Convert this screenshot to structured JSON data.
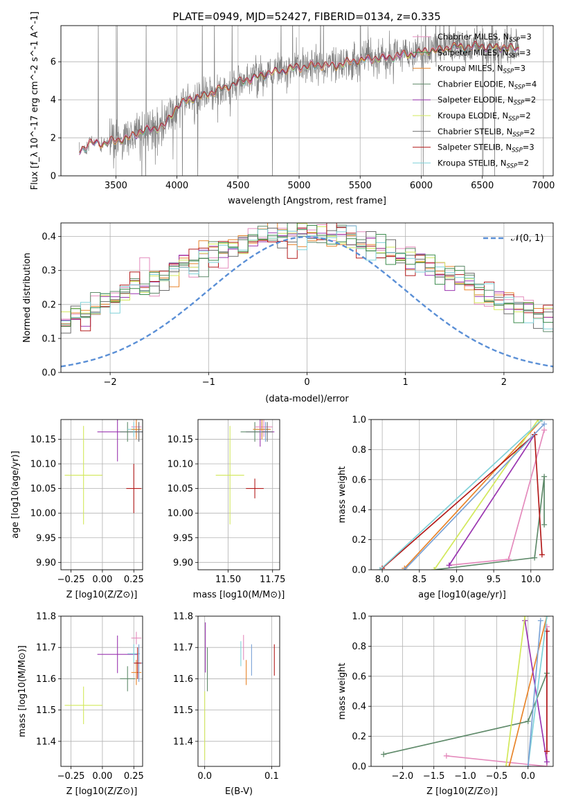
{
  "figure": {
    "title": "PLATE=0949, MJD=52427, FIBERID=0134, z=0.335"
  },
  "colors": {
    "spectrum": "#808080",
    "normal_curve": "#5a8fd6",
    "grid": "#b0b0b0",
    "models": [
      "#e48abc",
      "#3c8c4e",
      "#e8842a",
      "#5f8a6a",
      "#9a35b0",
      "#d2e85a",
      "#6a6a6a",
      "#b31b1b",
      "#7fd1d8",
      "#7aa2d6"
    ]
  },
  "chart_data": [
    {
      "id": "spectrum",
      "type": "line",
      "xlabel": "wavelength [Angstrom, rest frame]",
      "ylabel": "Flux [f_λ 10^-17 erg cm^-2 s^-1 A^-1]",
      "xlim": [
        3050,
        7080
      ],
      "ylim": [
        0,
        7.9
      ],
      "xticks": [
        3500,
        4000,
        4500,
        5000,
        5500,
        6000,
        6500,
        7000
      ],
      "yticks": [
        0,
        2,
        4,
        6
      ],
      "x_range": [
        3200,
        6800
      ],
      "continuum": [
        [
          3200,
          1.3
        ],
        [
          3300,
          1.75
        ],
        [
          3400,
          1.7
        ],
        [
          3500,
          1.85
        ],
        [
          3600,
          2.0
        ],
        [
          3700,
          2.3
        ],
        [
          3800,
          2.5
        ],
        [
          3900,
          2.6
        ],
        [
          4000,
          3.7
        ],
        [
          4100,
          4.0
        ],
        [
          4300,
          4.4
        ],
        [
          4500,
          4.9
        ],
        [
          4700,
          5.3
        ],
        [
          4900,
          5.6
        ],
        [
          5100,
          5.8
        ],
        [
          5300,
          5.8
        ],
        [
          5500,
          6.1
        ],
        [
          5700,
          6.2
        ],
        [
          5900,
          6.4
        ],
        [
          6100,
          6.6
        ],
        [
          6300,
          6.8
        ],
        [
          6500,
          6.8
        ],
        [
          6800,
          6.7
        ]
      ],
      "legend": [
        {
          "label": "Chabrier MILES, N",
          "sub": "SSP",
          "tail": "=3"
        },
        {
          "label": "Salpeter MILES, N",
          "sub": "SSP",
          "tail": "=3"
        },
        {
          "label": "Kroupa MILES, N",
          "sub": "SSP",
          "tail": "=3"
        },
        {
          "label": "Chabrier ELODIE, N",
          "sub": "SSP",
          "tail": "=4"
        },
        {
          "label": "Salpeter ELODIE, N",
          "sub": "SSP",
          "tail": "=2"
        },
        {
          "label": "Kroupa ELODIE, N",
          "sub": "SSP",
          "tail": "=2"
        },
        {
          "label": "Chabrier STELIB, N",
          "sub": "SSP",
          "tail": "=2"
        },
        {
          "label": "Salpeter STELIB, N",
          "sub": "SSP",
          "tail": "=3"
        },
        {
          "label": "Kroupa STELIB, N",
          "sub": "SSP",
          "tail": "=2"
        }
      ],
      "legend_position": "top-right"
    },
    {
      "id": "residuals",
      "type": "line",
      "xlabel": "(data-model)/error",
      "ylabel": "Normed distribution",
      "xlim": [
        -2.5,
        2.5
      ],
      "ylim": [
        0,
        0.44
      ],
      "xticks": [
        -2,
        -1,
        0,
        1,
        2
      ],
      "yticks": [
        0.0,
        0.1,
        0.2,
        0.3,
        0.4
      ],
      "bin_width": 0.1,
      "legend": [
        {
          "label": "N(0, 1)"
        }
      ],
      "legend_position": "top-right",
      "grid": true
    },
    {
      "id": "age_vs_Z",
      "type": "scatter",
      "xlabel": "Z [log10(Z/Z⊙)]",
      "ylabel": "age [log10(age/yr)]",
      "xlim": [
        -0.33,
        0.32
      ],
      "ylim": [
        9.885,
        10.19
      ],
      "xticks": [
        -0.25,
        0.0,
        0.25
      ],
      "yticks": [
        9.9,
        9.95,
        10.0,
        10.05,
        10.1,
        10.15
      ],
      "points": [
        {
          "x": 0.12,
          "xe": 0.16,
          "y": 10.165,
          "ye": 0.06,
          "c": 4
        },
        {
          "x": 0.2,
          "xe": 0.06,
          "y": 10.165,
          "ye": 0.02,
          "c": 3
        },
        {
          "x": 0.27,
          "xe": 0.04,
          "y": 10.175,
          "ye": 0.02,
          "c": 0
        },
        {
          "x": 0.25,
          "xe": 0.05,
          "y": 10.17,
          "ye": 0.015,
          "c": 8
        },
        {
          "x": 0.27,
          "xe": 0.04,
          "y": 10.17,
          "ye": 0.02,
          "c": 2
        },
        {
          "x": 0.29,
          "xe": 0.03,
          "y": 10.165,
          "ye": 0.02,
          "c": 9
        },
        {
          "x": 0.29,
          "xe": 0.03,
          "y": 10.165,
          "ye": 0.02,
          "c": 6
        },
        {
          "x": 0.25,
          "xe": 0.06,
          "y": 10.05,
          "ye": 0.05,
          "c": 7
        },
        {
          "x": -0.15,
          "xe": 0.15,
          "y": 10.077,
          "ye": 0.1,
          "c": 5
        }
      ]
    },
    {
      "id": "age_vs_mass",
      "type": "scatter",
      "xlabel": "mass [log10(M/M⊙)]",
      "ylabel": "",
      "xlim": [
        11.33,
        11.79
      ],
      "ylim": [
        9.885,
        10.19
      ],
      "xticks": [
        11.5,
        11.75
      ],
      "yticks": [
        9.9,
        9.95,
        10.0,
        10.05,
        10.1,
        10.15
      ],
      "points": [
        {
          "x": 11.68,
          "xe": 0.08,
          "y": 10.165,
          "ye": 0.03,
          "c": 4
        },
        {
          "x": 11.65,
          "xe": 0.08,
          "y": 10.165,
          "ye": 0.02,
          "c": 3
        },
        {
          "x": 11.7,
          "xe": 0.05,
          "y": 10.175,
          "ye": 0.02,
          "c": 0
        },
        {
          "x": 11.69,
          "xe": 0.04,
          "y": 10.17,
          "ye": 0.015,
          "c": 8
        },
        {
          "x": 11.69,
          "xe": 0.05,
          "y": 10.17,
          "ye": 0.02,
          "c": 2
        },
        {
          "x": 11.71,
          "xe": 0.03,
          "y": 10.165,
          "ye": 0.02,
          "c": 9
        },
        {
          "x": 11.72,
          "xe": 0.03,
          "y": 10.165,
          "ye": 0.02,
          "c": 6
        },
        {
          "x": 11.65,
          "xe": 0.05,
          "y": 10.05,
          "ye": 0.02,
          "c": 7
        },
        {
          "x": 11.51,
          "xe": 0.08,
          "y": 10.077,
          "ye": 0.1,
          "c": 5
        }
      ]
    },
    {
      "id": "weight_vs_age",
      "type": "line",
      "xlabel": "age [log10(age/yr)]",
      "ylabel": "mass weight",
      "xlim": [
        7.85,
        10.3
      ],
      "ylim": [
        0,
        1.0
      ],
      "xticks": [
        8.0,
        8.5,
        9.0,
        9.5,
        10.0
      ],
      "yticks": [
        0.0,
        0.2,
        0.4,
        0.6,
        0.8,
        1.0
      ],
      "series": [
        {
          "c": 0,
          "points": [
            [
              8.9,
              0.03
            ],
            [
              9.7,
              0.07
            ],
            [
              10.18,
              0.93
            ]
          ]
        },
        {
          "c": 2,
          "points": [
            [
              8.3,
              0.01
            ],
            [
              10.15,
              1.0
            ]
          ]
        },
        {
          "c": 3,
          "points": [
            [
              8.7,
              0.0
            ],
            [
              10.05,
              0.08
            ],
            [
              10.18,
              0.62
            ],
            [
              10.18,
              0.3
            ]
          ]
        },
        {
          "c": 4,
          "points": [
            [
              8.9,
              0.03
            ],
            [
              10.05,
              0.9
            ]
          ]
        },
        {
          "c": 5,
          "points": [
            [
              8.7,
              0.0
            ],
            [
              10.1,
              1.0
            ]
          ]
        },
        {
          "c": 7,
          "points": [
            [
              8.0,
              0.01
            ],
            [
              10.05,
              0.9
            ],
            [
              10.15,
              0.1
            ]
          ]
        },
        {
          "c": 8,
          "points": [
            [
              7.97,
              0.0
            ],
            [
              10.15,
              1.0
            ]
          ]
        },
        {
          "c": 9,
          "points": [
            [
              8.3,
              0.0
            ],
            [
              10.18,
              0.97
            ]
          ]
        }
      ]
    },
    {
      "id": "mass_vs_Z",
      "type": "scatter",
      "xlabel": "Z [log10(Z/Z⊙)]",
      "ylabel": "mass [log10(M/M⊙)]",
      "xlim": [
        -0.33,
        0.32
      ],
      "ylim": [
        11.32,
        11.8
      ],
      "xticks": [
        -0.25,
        0.0,
        0.25
      ],
      "yticks": [
        11.4,
        11.5,
        11.6,
        11.7,
        11.8
      ],
      "points": [
        {
          "x": 0.12,
          "xe": 0.16,
          "y": 11.678,
          "ye": 0.06,
          "c": 4
        },
        {
          "x": 0.2,
          "xe": 0.06,
          "y": 11.6,
          "ye": 0.04,
          "c": 3
        },
        {
          "x": 0.27,
          "xe": 0.04,
          "y": 11.73,
          "ye": 0.02,
          "c": 0
        },
        {
          "x": 0.25,
          "xe": 0.05,
          "y": 11.68,
          "ye": 0.03,
          "c": 8
        },
        {
          "x": 0.27,
          "xe": 0.04,
          "y": 11.62,
          "ye": 0.04,
          "c": 2
        },
        {
          "x": 0.29,
          "xe": 0.03,
          "y": 11.65,
          "ye": 0.06,
          "c": 9
        },
        {
          "x": 0.28,
          "xe": 0.03,
          "y": 11.65,
          "ye": 0.05,
          "c": 7
        },
        {
          "x": -0.15,
          "xe": 0.15,
          "y": 11.515,
          "ye": 0.06,
          "c": 5
        }
      ]
    },
    {
      "id": "mass_vs_ebv",
      "type": "scatter",
      "xlabel": "E(B-V)",
      "ylabel": "",
      "xlim": [
        -0.01,
        0.112
      ],
      "ylim": [
        11.32,
        11.8
      ],
      "xticks": [
        0.0,
        0.1
      ],
      "yticks": [
        11.4,
        11.5,
        11.6,
        11.7,
        11.8
      ],
      "points": [
        {
          "x": 0.001,
          "y": 11.7,
          "ye": 0.08,
          "c": 4
        },
        {
          "x": 0.004,
          "y": 11.63,
          "ye": 0.07,
          "c": 3
        },
        {
          "x": 0.0,
          "y": 11.45,
          "ye": 0.11,
          "c": 5
        },
        {
          "x": 0.054,
          "y": 11.68,
          "ye": 0.04,
          "c": 8
        },
        {
          "x": 0.058,
          "y": 11.7,
          "ye": 0.04,
          "c": 0
        },
        {
          "x": 0.062,
          "y": 11.62,
          "ye": 0.04,
          "c": 2
        },
        {
          "x": 0.07,
          "y": 11.66,
          "ye": 0.05,
          "c": 9
        },
        {
          "x": 0.104,
          "y": 11.66,
          "ye": 0.05,
          "c": 7
        }
      ]
    },
    {
      "id": "weight_vs_Z",
      "type": "line",
      "xlabel": "Z [log10(Z/Z⊙)]",
      "ylabel": "mass weight",
      "xlim": [
        -2.5,
        0.4
      ],
      "ylim": [
        0,
        1.0
      ],
      "xticks": [
        -2.0,
        -1.5,
        -1.0,
        -0.5,
        0.0
      ],
      "yticks": [
        0.0,
        0.2,
        0.4,
        0.6,
        0.8,
        1.0
      ],
      "series": [
        {
          "c": 0,
          "points": [
            [
              -1.3,
              0.07
            ],
            [
              0.3,
              0.0
            ],
            [
              0.3,
              0.93
            ]
          ]
        },
        {
          "c": 2,
          "points": [
            [
              -0.3,
              0.0
            ],
            [
              0.3,
              1.0
            ]
          ]
        },
        {
          "c": 3,
          "points": [
            [
              -2.3,
              0.08
            ],
            [
              0.0,
              0.3
            ],
            [
              0.3,
              0.62
            ]
          ]
        },
        {
          "c": 4,
          "points": [
            [
              -0.05,
              0.97
            ],
            [
              0.3,
              0.03
            ]
          ]
        },
        {
          "c": 5,
          "points": [
            [
              -0.35,
              0.0
            ],
            [
              -0.05,
              1.0
            ]
          ]
        },
        {
          "c": 7,
          "points": [
            [
              0.3,
              0.1
            ],
            [
              0.3,
              0.9
            ]
          ]
        },
        {
          "c": 8,
          "points": [
            [
              0.0,
              0.0
            ],
            [
              0.3,
              1.0
            ]
          ]
        },
        {
          "c": 9,
          "points": [
            [
              0.0,
              0.0
            ],
            [
              0.2,
              0.97
            ]
          ]
        }
      ]
    }
  ]
}
